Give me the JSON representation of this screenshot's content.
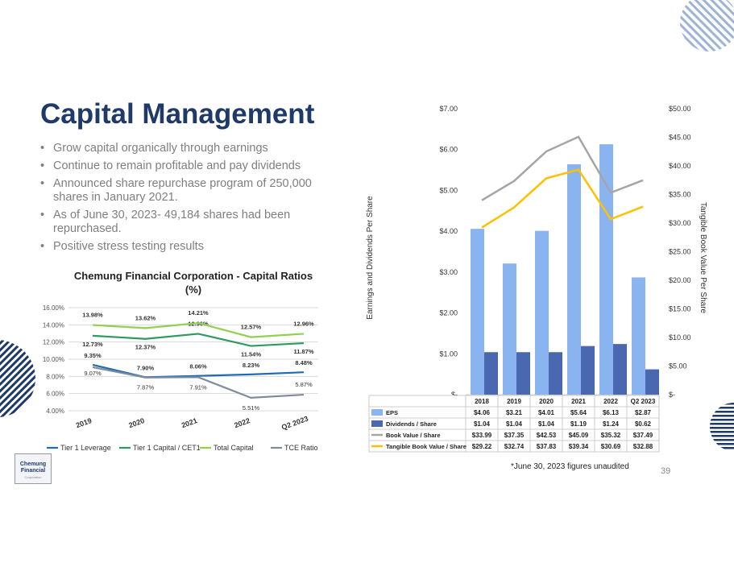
{
  "slide": {
    "title": "Capital Management",
    "bullets": [
      "Grow capital organically through earnings",
      "Continue to remain profitable and pay dividends",
      "Announced share repurchase program of 250,000 shares in January 2021.",
      "As of June 30, 2023- 49,184 shares had been repurchased.",
      "Positive stress testing results"
    ],
    "bullet_char": "•",
    "footnote": "*June 30, 2023 figures unaudited",
    "page_number": "39",
    "logo_line1": "Chemung",
    "logo_line2": "Financial",
    "logo_tagline": "Corporation"
  },
  "chart_data": [
    {
      "type": "line",
      "title": "Chemung Financial Corporation - Capital Ratios",
      "subtitle": "(%)",
      "categories": [
        "2019",
        "2020",
        "2021",
        "2022",
        "Q2 2023"
      ],
      "ylim": [
        4,
        16
      ],
      "yticks": [
        "4.00%",
        "6.00%",
        "8.00%",
        "10.00%",
        "12.00%",
        "14.00%",
        "16.00%"
      ],
      "grid": true,
      "legend_position": "bottom",
      "series": [
        {
          "name": "Tier 1 Leverage",
          "color": "#1f6bb5",
          "values": [
            9.35,
            7.9,
            8.06,
            8.23,
            8.48
          ],
          "labels": [
            "9.35%",
            "7.90%",
            "8.06%",
            "8.23%",
            "8.48%"
          ]
        },
        {
          "name": "Tier 1 Capital / CET1",
          "color": "#2e9b5e",
          "values": [
            12.73,
            12.37,
            12.96,
            11.54,
            11.87
          ],
          "labels": [
            "12.73%",
            "12.37%",
            "12.96%",
            "11.54%",
            "11.87%"
          ]
        },
        {
          "name": "Total Capital",
          "color": "#92d050",
          "values": [
            13.98,
            13.62,
            14.21,
            12.57,
            12.96
          ],
          "labels": [
            "13.98%",
            "13.62%",
            "14.21%",
            "12.57%",
            "12.96%"
          ]
        },
        {
          "name": "TCE Ratio",
          "color": "#7f8c9e",
          "values": [
            9.07,
            7.87,
            7.91,
            5.51,
            5.87
          ],
          "labels": [
            "9.07%",
            "7.87%",
            "7.91%",
            "5.51%",
            "5.87%"
          ]
        }
      ]
    },
    {
      "type": "bar",
      "title": "",
      "categories": [
        "2018",
        "2019",
        "2020",
        "2021",
        "2022",
        "Q2 2023"
      ],
      "ylabel": "Earnings and Dividends Per Share",
      "y2label": "Tangible Book Value Per Share",
      "ylim": [
        0,
        7
      ],
      "y2lim": [
        0,
        50
      ],
      "yticks": [
        "$-",
        "$1.00",
        "$2.00",
        "$3.00",
        "$4.00",
        "$5.00",
        "$6.00",
        "$7.00"
      ],
      "y2ticks": [
        "$-",
        "$5.00",
        "$10.00",
        "$15.00",
        "$20.00",
        "$25.00",
        "$30.00",
        "$35.00",
        "$40.00",
        "$45.00",
        "$50.00"
      ],
      "grid": false,
      "legend_position": "bottom-table",
      "series": [
        {
          "name": "EPS",
          "kind": "bar",
          "axis": "left",
          "color": "#8ab4f0",
          "values": [
            4.06,
            3.21,
            4.01,
            5.64,
            6.13,
            2.87
          ],
          "labels": [
            "$4.06",
            "$3.21",
            "$4.01",
            "$5.64",
            "$6.13",
            "$2.87"
          ]
        },
        {
          "name": "Dividends / Share",
          "kind": "bar",
          "axis": "left",
          "color": "#4a68b0",
          "values": [
            1.04,
            1.04,
            1.04,
            1.19,
            1.24,
            0.62
          ],
          "labels": [
            "$1.04",
            "$1.04",
            "$1.04",
            "$1.19",
            "$1.24",
            "$0.62"
          ]
        },
        {
          "name": "Book Value / Share",
          "kind": "line",
          "axis": "right",
          "color": "#a5a5a5",
          "values": [
            33.99,
            37.35,
            42.53,
            45.09,
            35.32,
            37.49
          ],
          "labels": [
            "$33.99",
            "$37.35",
            "$42.53",
            "$45.09",
            "$35.32",
            "$37.49"
          ]
        },
        {
          "name": "Tangible Book Value / Share",
          "kind": "line",
          "axis": "right",
          "color": "#ffc000",
          "values": [
            29.22,
            32.74,
            37.83,
            39.34,
            30.69,
            32.88
          ],
          "labels": [
            "$29.22",
            "$32.74",
            "$37.83",
            "$39.34",
            "$30.69",
            "$32.88"
          ]
        }
      ]
    }
  ]
}
